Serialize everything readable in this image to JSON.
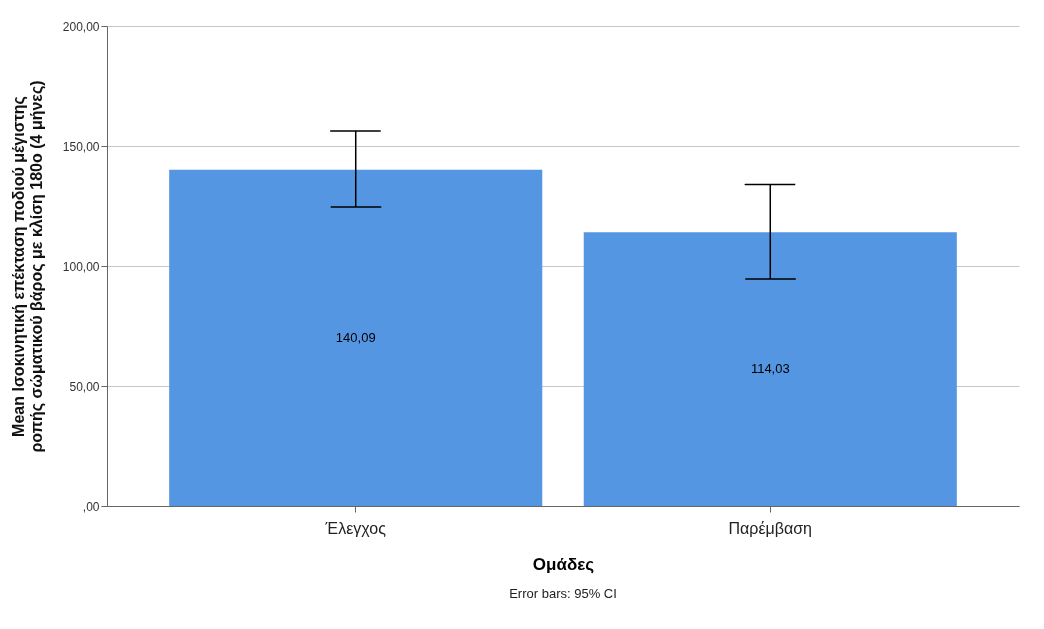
{
  "chart_data": {
    "type": "bar",
    "xlabel": "Ομάδες",
    "ylabel": "Mean Ισοκινητική επέκταση ποδιού μέγιστης ροπής σώματικού βάρος με κλίση 180o (4 μήνες)",
    "categories": [
      "Έλεγχος",
      "Παρέμβαση"
    ],
    "values": [
      140.09,
      114.03
    ],
    "value_labels": [
      "140,09",
      "114,03"
    ],
    "errors": [
      [
        124.6,
        156.2
      ],
      [
        94.6,
        134
      ]
    ],
    "color": "#5596e3",
    "ylim": [
      0,
      200
    ],
    "yticks": [
      {
        "value": 0,
        "label": ",00"
      },
      {
        "value": 50,
        "label": "50,00"
      },
      {
        "value": 100,
        "label": "100,00"
      },
      {
        "value": 150,
        "label": "150,00"
      },
      {
        "value": 200,
        "label": "200,00"
      }
    ],
    "grid": "y",
    "annotations": [
      "Error bars: 95% CI"
    ]
  }
}
